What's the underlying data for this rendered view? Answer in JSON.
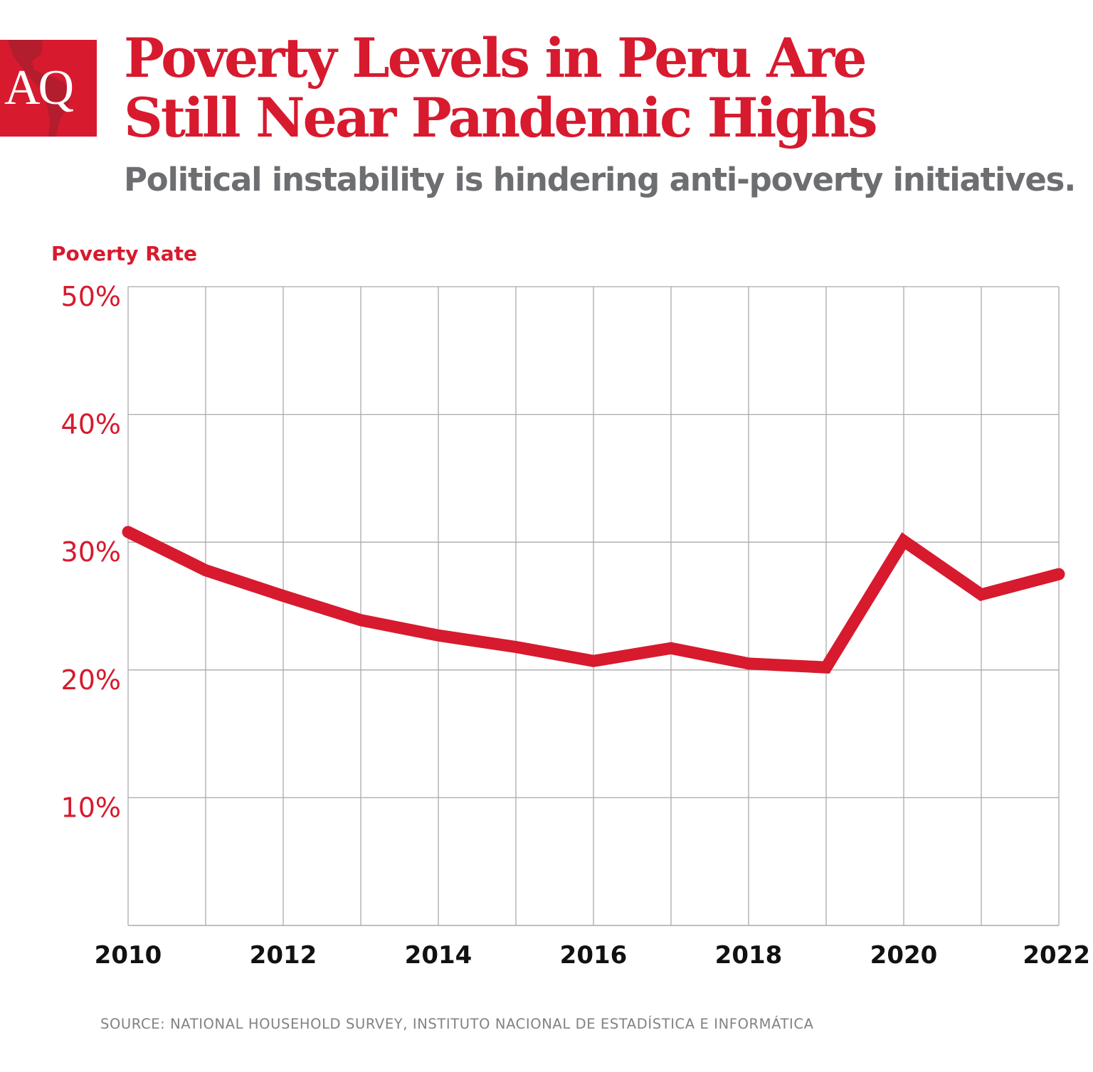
{
  "logo": {
    "text": "AQ"
  },
  "header": {
    "title_line1": "Poverty Levels in Peru Are",
    "title_line2": "Still Near Pandemic Highs",
    "subtitle": "Political instability is hindering anti-poverty initiatives."
  },
  "source": "SOURCE: NATIONAL HOUSEHOLD SURVEY, INSTITUTO NACIONAL DE ESTADÍSTICA E INFORMÁTICA",
  "chart_data": {
    "type": "line",
    "title": "Poverty Levels in Peru Are Still Near Pandemic Highs",
    "subtitle": "Political instability is hindering anti-poverty initiatives.",
    "ylabel": "Poverty Rate",
    "xlabel": "",
    "x": [
      2010,
      2011,
      2012,
      2013,
      2014,
      2015,
      2016,
      2017,
      2018,
      2019,
      2020,
      2021,
      2022
    ],
    "series": [
      {
        "values": [
          30.8,
          27.8,
          25.8,
          23.9,
          22.7,
          21.8,
          20.7,
          21.7,
          20.5,
          20.2,
          30.1,
          25.9,
          27.5
        ],
        "color": "#d71a2e"
      }
    ],
    "xlim": [
      2010,
      2022
    ],
    "ylim": [
      0,
      50
    ],
    "xticks": [
      "2010",
      "2012",
      "2014",
      "2016",
      "2018",
      "2020",
      "2022"
    ],
    "yticks": [
      "10%",
      "20%",
      "30%",
      "40%",
      "50%"
    ],
    "grid": true,
    "colors": {
      "accent": "#d71a2e",
      "subtitle": "#6d6e71",
      "grid": "#aaaaaa"
    }
  }
}
